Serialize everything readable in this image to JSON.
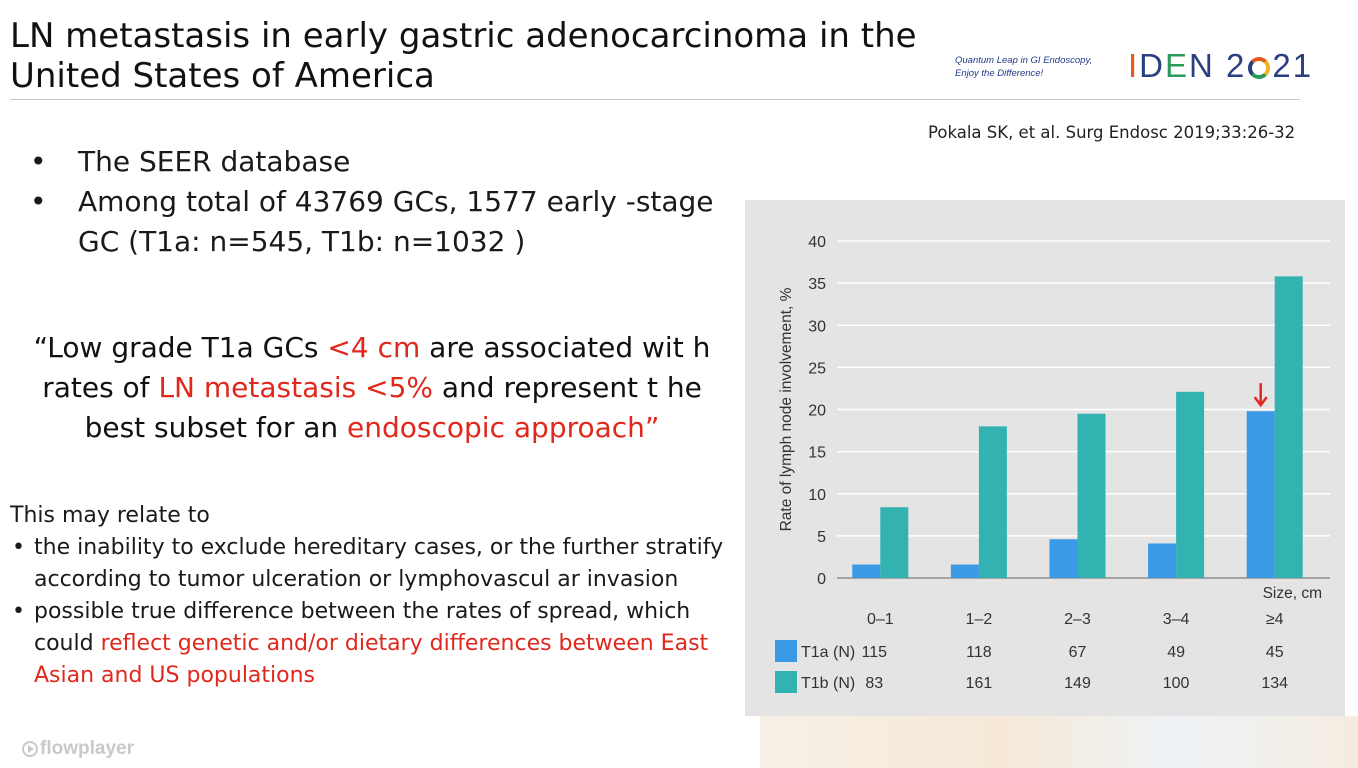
{
  "slide": {
    "title_line1": "LN metastasis in early gastric adenocarcinoma in the",
    "title_line2": "United States of America",
    "tagline_line1": "Quantum Leap in GI Endoscopy,",
    "tagline_line2": "Enjoy the Difference!",
    "logo_text_a": "I",
    "logo_text_b": "D",
    "logo_text_c": "E",
    "logo_text_d": "N",
    "logo_year_a": "2",
    "logo_year_b": "21",
    "citation": "Pokala SK, et al. Surg Endosc 2019;33:26-32",
    "bullets": [
      {
        "marker": "•",
        "text": "The SEER database"
      },
      {
        "marker": "•",
        "text": "Among total of 43769 GCs, 1577 early -stage GC (T1a: n=545, T1b: n=1032 )"
      }
    ],
    "quote": {
      "part1": "“Low grade T1a GCs ",
      "part2": "<4 cm",
      "part3": " are associated wit h rates of ",
      "part4": "LN metastasis <5%",
      "part5": " and represent t he best subset for an ",
      "part6": "endoscopic approach”"
    },
    "relate_heading": "This may relate to",
    "relate_items": [
      {
        "marker": "•",
        "text": "the inability to exclude hereditary cases, or the further stratify according to tumor ulceration or lymphovascul ar invasion"
      },
      {
        "marker": "•",
        "text": "possible true difference between the rates of spread, which could ",
        "highlight": "reflect genetic and/or dietary differences between East Asian and US populations"
      }
    ],
    "player_label": "flowplayer"
  },
  "chart_data": {
    "type": "bar",
    "categories": [
      "0–1",
      "1–2",
      "2–3",
      "3–4",
      "≥4"
    ],
    "series": [
      {
        "name": "T1a (N)",
        "color": "#3b9ae6",
        "values": [
          1.6,
          1.6,
          4.6,
          4.1,
          19.8
        ],
        "counts": [
          "115",
          "118",
          "67",
          "49",
          "45"
        ]
      },
      {
        "name": "T1b (N)",
        "color": "#33b2b2",
        "values": [
          8.4,
          18.0,
          19.5,
          22.1,
          35.8
        ],
        "counts": [
          "83",
          "161",
          "149",
          "100",
          "134"
        ]
      }
    ],
    "title": "",
    "xlabel": "Size, cm",
    "ylabel": "Rate of lymph node involvement, %",
    "ylim": [
      0,
      40
    ],
    "yticks": [
      "0",
      "5",
      "10",
      "15",
      "20",
      "25",
      "30",
      "35",
      "40"
    ],
    "grid": true,
    "annotation": {
      "category_index": 4,
      "series_index": 0,
      "symbol": "arrow-down",
      "color": "#e0281c"
    }
  }
}
